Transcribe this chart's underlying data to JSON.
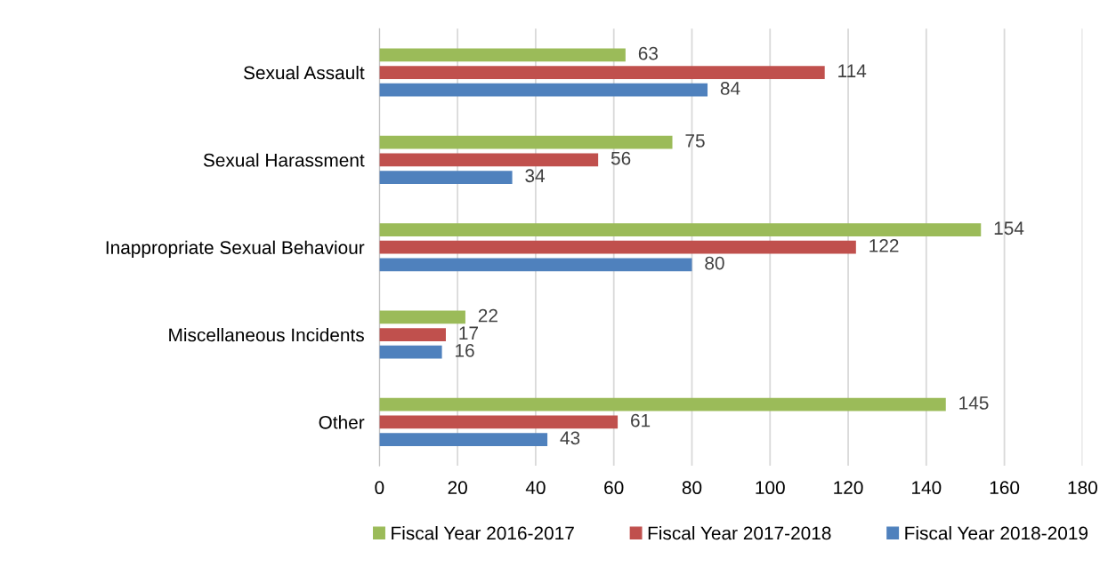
{
  "chart_data": {
    "type": "bar",
    "orientation": "horizontal",
    "categories": [
      "Sexual Assault",
      "Sexual Harassment",
      "Inappropriate Sexual Behaviour",
      "Miscellaneous Incidents",
      "Other"
    ],
    "series": [
      {
        "name": "Fiscal Year 2016-2017",
        "color": "#9bbb59",
        "values": [
          63,
          75,
          154,
          22,
          145
        ]
      },
      {
        "name": "Fiscal Year 2017-2018",
        "color": "#c0504d",
        "values": [
          114,
          56,
          122,
          17,
          61
        ]
      },
      {
        "name": "Fiscal Year 2018-2019",
        "color": "#4f81bd",
        "values": [
          84,
          34,
          80,
          16,
          43
        ]
      }
    ],
    "xlim": [
      0,
      180
    ],
    "xticks": [
      0,
      20,
      40,
      60,
      80,
      100,
      120,
      140,
      160,
      180
    ],
    "grid": "x",
    "legend": "bottom",
    "data_labels": true
  }
}
